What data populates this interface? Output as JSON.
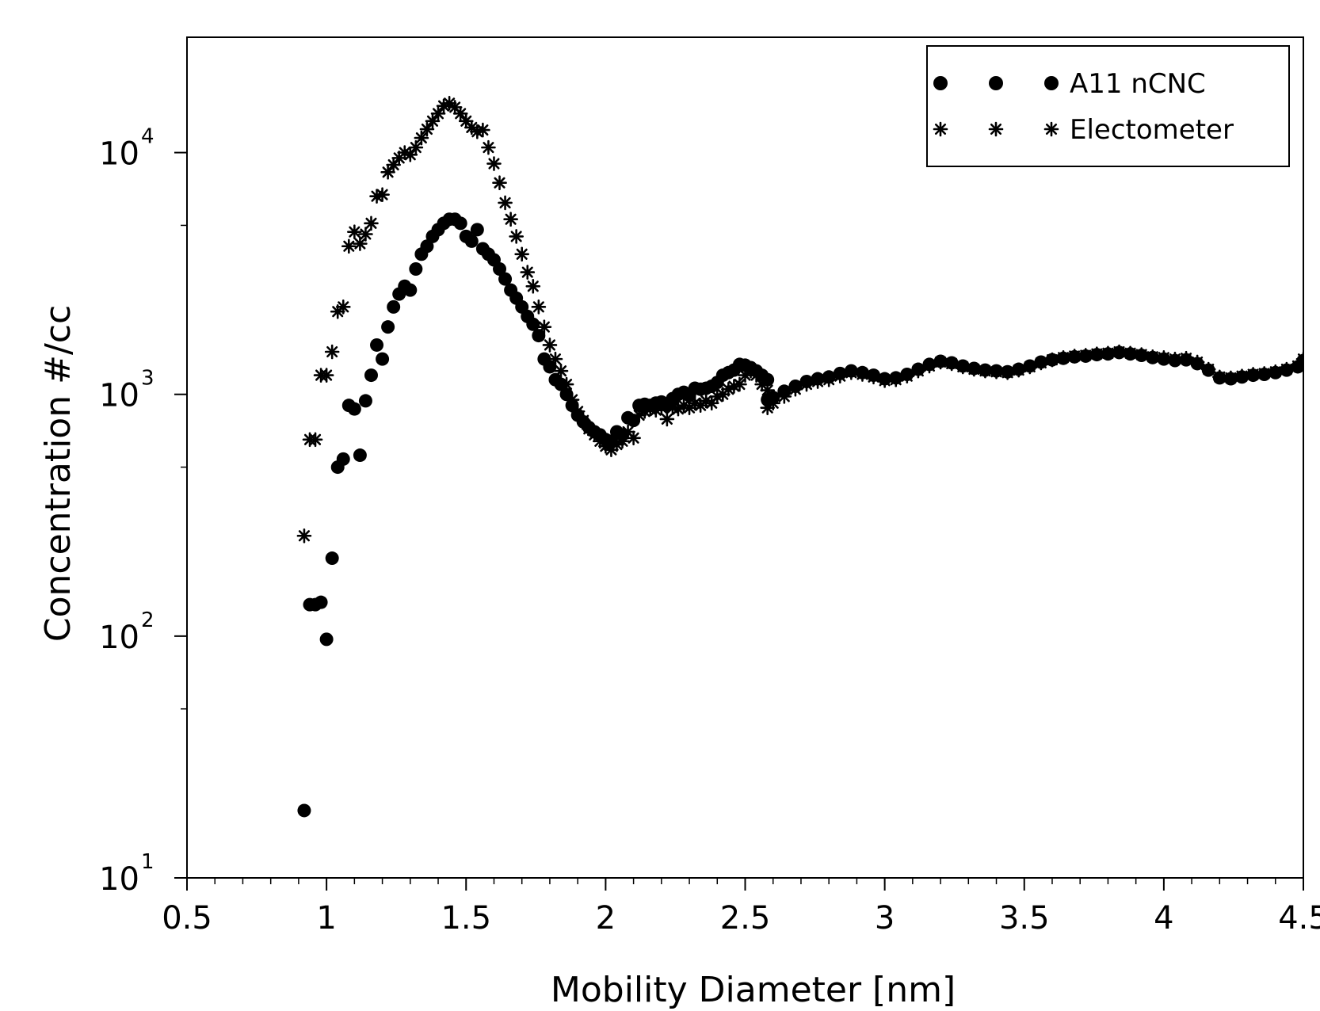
{
  "chart_data": {
    "type": "scatter",
    "title": "",
    "xlabel": "Mobility Diameter [nm]",
    "ylabel": "Concentration #/cc",
    "xlim": [
      0.5,
      4.5
    ],
    "ylim": [
      10,
      30000
    ],
    "yscale": "log",
    "grid": false,
    "legend_position": "top-right",
    "x_ticks": [
      "0.5",
      "1",
      "1.5",
      "2",
      "2.5",
      "3",
      "3.5",
      "4",
      "4.5"
    ],
    "y_ticks": [
      {
        "base": "10",
        "exp": "1"
      },
      {
        "base": "10",
        "exp": "2"
      },
      {
        "base": "10",
        "exp": "3"
      },
      {
        "base": "10",
        "exp": "4"
      }
    ],
    "series": [
      {
        "name": "A11 nCNC",
        "marker": "circle",
        "color": "#000000",
        "points": [
          [
            0.92,
            19
          ],
          [
            0.94,
            135
          ],
          [
            0.96,
            135
          ],
          [
            0.98,
            138
          ],
          [
            1.0,
            97
          ],
          [
            1.02,
            210
          ],
          [
            1.04,
            500
          ],
          [
            1.06,
            540
          ],
          [
            1.08,
            900
          ],
          [
            1.1,
            870
          ],
          [
            1.12,
            560
          ],
          [
            1.14,
            940
          ],
          [
            1.16,
            1200
          ],
          [
            1.18,
            1600
          ],
          [
            1.2,
            1400
          ],
          [
            1.22,
            1900
          ],
          [
            1.24,
            2300
          ],
          [
            1.26,
            2600
          ],
          [
            1.28,
            2800
          ],
          [
            1.3,
            2700
          ],
          [
            1.32,
            3300
          ],
          [
            1.34,
            3800
          ],
          [
            1.36,
            4100
          ],
          [
            1.38,
            4500
          ],
          [
            1.4,
            4800
          ],
          [
            1.42,
            5100
          ],
          [
            1.44,
            5300
          ],
          [
            1.46,
            5300
          ],
          [
            1.48,
            5100
          ],
          [
            1.5,
            4500
          ],
          [
            1.52,
            4300
          ],
          [
            1.54,
            4800
          ],
          [
            1.56,
            4000
          ],
          [
            1.58,
            3800
          ],
          [
            1.6,
            3600
          ],
          [
            1.62,
            3300
          ],
          [
            1.64,
            3000
          ],
          [
            1.66,
            2700
          ],
          [
            1.68,
            2500
          ],
          [
            1.7,
            2300
          ],
          [
            1.72,
            2100
          ],
          [
            1.74,
            1950
          ],
          [
            1.76,
            1750
          ],
          [
            1.78,
            1400
          ],
          [
            1.8,
            1300
          ],
          [
            1.82,
            1150
          ],
          [
            1.84,
            1100
          ],
          [
            1.86,
            1000
          ],
          [
            1.88,
            900
          ],
          [
            1.9,
            820
          ],
          [
            1.92,
            770
          ],
          [
            1.94,
            730
          ],
          [
            1.96,
            700
          ],
          [
            1.98,
            680
          ],
          [
            2.0,
            650
          ],
          [
            2.02,
            640
          ],
          [
            2.04,
            700
          ],
          [
            2.06,
            680
          ],
          [
            2.08,
            800
          ],
          [
            2.1,
            780
          ],
          [
            2.12,
            900
          ],
          [
            2.14,
            910
          ],
          [
            2.16,
            900
          ],
          [
            2.18,
            920
          ],
          [
            2.2,
            930
          ],
          [
            2.22,
            900
          ],
          [
            2.24,
            960
          ],
          [
            2.26,
            1000
          ],
          [
            2.28,
            1020
          ],
          [
            2.3,
            990
          ],
          [
            2.32,
            1060
          ],
          [
            2.34,
            1050
          ],
          [
            2.36,
            1060
          ],
          [
            2.38,
            1080
          ],
          [
            2.4,
            1120
          ],
          [
            2.42,
            1200
          ],
          [
            2.44,
            1230
          ],
          [
            2.46,
            1260
          ],
          [
            2.48,
            1330
          ],
          [
            2.5,
            1320
          ],
          [
            2.52,
            1290
          ],
          [
            2.54,
            1250
          ],
          [
            2.56,
            1200
          ],
          [
            2.58,
            1150
          ],
          [
            2.58,
            950
          ],
          [
            2.6,
            970
          ],
          [
            2.64,
            1030
          ],
          [
            2.68,
            1080
          ],
          [
            2.72,
            1130
          ],
          [
            2.76,
            1160
          ],
          [
            2.8,
            1180
          ],
          [
            2.84,
            1220
          ],
          [
            2.88,
            1250
          ],
          [
            2.92,
            1230
          ],
          [
            2.96,
            1200
          ],
          [
            3.0,
            1160
          ],
          [
            3.04,
            1170
          ],
          [
            3.08,
            1210
          ],
          [
            3.12,
            1270
          ],
          [
            3.16,
            1330
          ],
          [
            3.2,
            1370
          ],
          [
            3.24,
            1350
          ],
          [
            3.28,
            1310
          ],
          [
            3.32,
            1280
          ],
          [
            3.36,
            1260
          ],
          [
            3.4,
            1250
          ],
          [
            3.44,
            1240
          ],
          [
            3.48,
            1270
          ],
          [
            3.52,
            1310
          ],
          [
            3.56,
            1360
          ],
          [
            3.6,
            1390
          ],
          [
            3.64,
            1410
          ],
          [
            3.68,
            1430
          ],
          [
            3.72,
            1440
          ],
          [
            3.76,
            1460
          ],
          [
            3.8,
            1470
          ],
          [
            3.84,
            1490
          ],
          [
            3.88,
            1470
          ],
          [
            3.92,
            1450
          ],
          [
            3.96,
            1420
          ],
          [
            4.0,
            1400
          ],
          [
            4.04,
            1380
          ],
          [
            4.08,
            1390
          ],
          [
            4.12,
            1340
          ],
          [
            4.16,
            1260
          ],
          [
            4.2,
            1170
          ],
          [
            4.24,
            1160
          ],
          [
            4.28,
            1180
          ],
          [
            4.32,
            1200
          ],
          [
            4.36,
            1210
          ],
          [
            4.4,
            1230
          ],
          [
            4.44,
            1260
          ],
          [
            4.48,
            1300
          ],
          [
            4.5,
            1380
          ]
        ]
      },
      {
        "name": "Electometer",
        "marker": "asterisk",
        "color": "#000000",
        "points": [
          [
            0.92,
            260
          ],
          [
            0.94,
            650
          ],
          [
            0.96,
            650
          ],
          [
            0.98,
            1200
          ],
          [
            1.0,
            1200
          ],
          [
            1.02,
            1500
          ],
          [
            1.04,
            2200
          ],
          [
            1.06,
            2300
          ],
          [
            1.08,
            4100
          ],
          [
            1.1,
            4700
          ],
          [
            1.12,
            4200
          ],
          [
            1.14,
            4600
          ],
          [
            1.16,
            5100
          ],
          [
            1.18,
            6600
          ],
          [
            1.2,
            6700
          ],
          [
            1.22,
            8300
          ],
          [
            1.24,
            8900
          ],
          [
            1.26,
            9500
          ],
          [
            1.28,
            10000
          ],
          [
            1.3,
            9800
          ],
          [
            1.32,
            10500
          ],
          [
            1.34,
            11500
          ],
          [
            1.36,
            12500
          ],
          [
            1.38,
            13500
          ],
          [
            1.4,
            14500
          ],
          [
            1.42,
            15600
          ],
          [
            1.44,
            16000
          ],
          [
            1.46,
            15400
          ],
          [
            1.48,
            14500
          ],
          [
            1.5,
            13500
          ],
          [
            1.52,
            12700
          ],
          [
            1.54,
            12200
          ],
          [
            1.56,
            12400
          ],
          [
            1.58,
            10500
          ],
          [
            1.6,
            9000
          ],
          [
            1.62,
            7500
          ],
          [
            1.64,
            6200
          ],
          [
            1.66,
            5300
          ],
          [
            1.68,
            4500
          ],
          [
            1.7,
            3800
          ],
          [
            1.72,
            3200
          ],
          [
            1.74,
            2800
          ],
          [
            1.76,
            2300
          ],
          [
            1.78,
            1900
          ],
          [
            1.8,
            1600
          ],
          [
            1.82,
            1400
          ],
          [
            1.84,
            1250
          ],
          [
            1.86,
            1100
          ],
          [
            1.88,
            950
          ],
          [
            1.9,
            850
          ],
          [
            1.92,
            780
          ],
          [
            1.94,
            720
          ],
          [
            1.96,
            680
          ],
          [
            1.98,
            640
          ],
          [
            2.0,
            610
          ],
          [
            2.02,
            590
          ],
          [
            2.04,
            620
          ],
          [
            2.06,
            640
          ],
          [
            2.08,
            700
          ],
          [
            2.1,
            660
          ],
          [
            2.12,
            820
          ],
          [
            2.14,
            850
          ],
          [
            2.16,
            870
          ],
          [
            2.18,
            860
          ],
          [
            2.2,
            880
          ],
          [
            2.22,
            790
          ],
          [
            2.24,
            880
          ],
          [
            2.26,
            870
          ],
          [
            2.28,
            900
          ],
          [
            2.3,
            880
          ],
          [
            2.32,
            920
          ],
          [
            2.34,
            900
          ],
          [
            2.36,
            940
          ],
          [
            2.38,
            920
          ],
          [
            2.4,
            980
          ],
          [
            2.42,
            1000
          ],
          [
            2.44,
            1050
          ],
          [
            2.46,
            1080
          ],
          [
            2.48,
            1100
          ],
          [
            2.5,
            1200
          ],
          [
            2.52,
            1250
          ],
          [
            2.54,
            1200
          ],
          [
            2.56,
            1100
          ],
          [
            2.58,
            1040
          ],
          [
            2.58,
            880
          ],
          [
            2.6,
            920
          ],
          [
            2.64,
            980
          ],
          [
            2.68,
            1050
          ],
          [
            2.72,
            1100
          ],
          [
            2.76,
            1130
          ],
          [
            2.8,
            1150
          ],
          [
            2.84,
            1190
          ],
          [
            2.88,
            1230
          ],
          [
            2.92,
            1210
          ],
          [
            2.96,
            1180
          ],
          [
            3.0,
            1140
          ],
          [
            3.04,
            1150
          ],
          [
            3.08,
            1190
          ],
          [
            3.12,
            1250
          ],
          [
            3.16,
            1310
          ],
          [
            3.2,
            1360
          ],
          [
            3.24,
            1340
          ],
          [
            3.28,
            1300
          ],
          [
            3.32,
            1270
          ],
          [
            3.36,
            1250
          ],
          [
            3.4,
            1240
          ],
          [
            3.44,
            1230
          ],
          [
            3.48,
            1260
          ],
          [
            3.52,
            1300
          ],
          [
            3.56,
            1350
          ],
          [
            3.6,
            1390
          ],
          [
            3.64,
            1420
          ],
          [
            3.68,
            1440
          ],
          [
            3.72,
            1450
          ],
          [
            3.76,
            1470
          ],
          [
            3.8,
            1480
          ],
          [
            3.84,
            1500
          ],
          [
            3.88,
            1480
          ],
          [
            3.92,
            1460
          ],
          [
            3.96,
            1430
          ],
          [
            4.0,
            1420
          ],
          [
            4.04,
            1400
          ],
          [
            4.08,
            1410
          ],
          [
            4.12,
            1360
          ],
          [
            4.16,
            1270
          ],
          [
            4.2,
            1180
          ],
          [
            4.24,
            1170
          ],
          [
            4.28,
            1190
          ],
          [
            4.32,
            1210
          ],
          [
            4.36,
            1220
          ],
          [
            4.4,
            1240
          ],
          [
            4.44,
            1270
          ],
          [
            4.48,
            1310
          ],
          [
            4.5,
            1400
          ]
        ]
      }
    ]
  }
}
